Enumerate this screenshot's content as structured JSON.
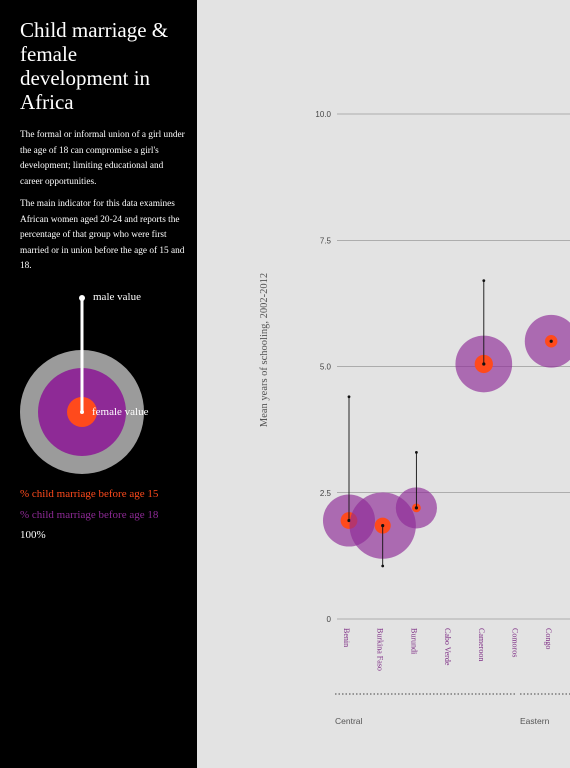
{
  "sidebar": {
    "title": "Child marriage & female development in Africa",
    "intro_1": "The formal or informal union of a girl under the age of 18 can compromise a girl's development; limiting educational and career opportunities.",
    "intro_2": "The main indicator for this data examines African women aged 20-24 and reports the percentage of that group who were first married or in union before the age of 15 and 18.",
    "legend": {
      "male_label": "male value",
      "female_label": "female value",
      "key_15": "% child marriage before age 15",
      "key_18": "% child marriage before age 18",
      "key_100": "100%"
    }
  },
  "colors": {
    "background": "#e3e3e3",
    "sidebar_bg": "#000000",
    "age15": "#ff4a1c",
    "age18": "#8e2a96",
    "hundred": "#9b9b9b",
    "country_label": "#7f2f86"
  },
  "chart_data": {
    "type": "scatter",
    "ylabel": "Mean years of schooling, 2002-2012",
    "xlabel": "",
    "ylim": [
      0,
      10
    ],
    "yticks": [
      "0",
      "2.5",
      "5.0",
      "7.5",
      "10.0"
    ],
    "grid": true,
    "categories": [
      "Benin",
      "Burkina Faso",
      "Burundi",
      "Cabo Verde",
      "Cameroon",
      "Comoros",
      "Congo"
    ],
    "female_schooling": [
      1.95,
      1.85,
      2.2,
      5.05,
      5.5
    ],
    "male_schooling": [
      4.4,
      1.05,
      3.3,
      6.7,
      null
    ],
    "bubble_countries": [
      "Benin",
      "Burkina Faso",
      "Burundi",
      "Cameroon",
      "Congo"
    ],
    "pct_before_15": [
      11,
      10,
      3,
      13,
      6
    ],
    "pct_before_18": [
      32,
      52,
      20,
      38,
      33
    ],
    "regions": [
      {
        "name": "Central",
        "countries": [
          "Benin",
          "Burkina Faso",
          "Burundi",
          "Cabo Verde",
          "Cameroon"
        ]
      },
      {
        "name": "Eastern",
        "countries": [
          "Comoros",
          "Congo"
        ]
      }
    ]
  }
}
